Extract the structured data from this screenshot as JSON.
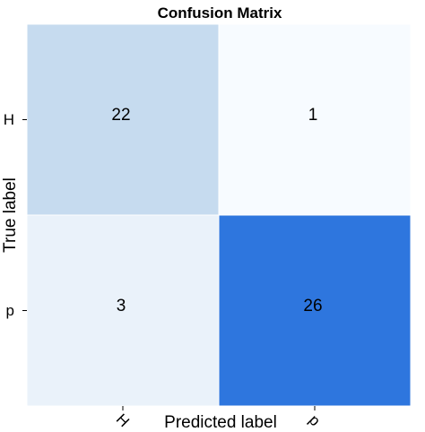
{
  "chart_data": {
    "type": "heatmap",
    "title": "Confusion Matrix",
    "xlabel": "Predicted label",
    "ylabel": "True label",
    "x_categories": [
      "H",
      "p"
    ],
    "y_categories": [
      "H",
      "p"
    ],
    "values": [
      [
        22,
        1
      ],
      [
        3,
        26
      ]
    ],
    "colormap": "Blues",
    "colors": {
      "cell_H_H": "#c6dbef",
      "cell_H_p": "#f7fbff",
      "cell_p_H": "#eaf2fa",
      "cell_p_p": "#2e76de"
    },
    "grid": false,
    "legend": "none"
  }
}
